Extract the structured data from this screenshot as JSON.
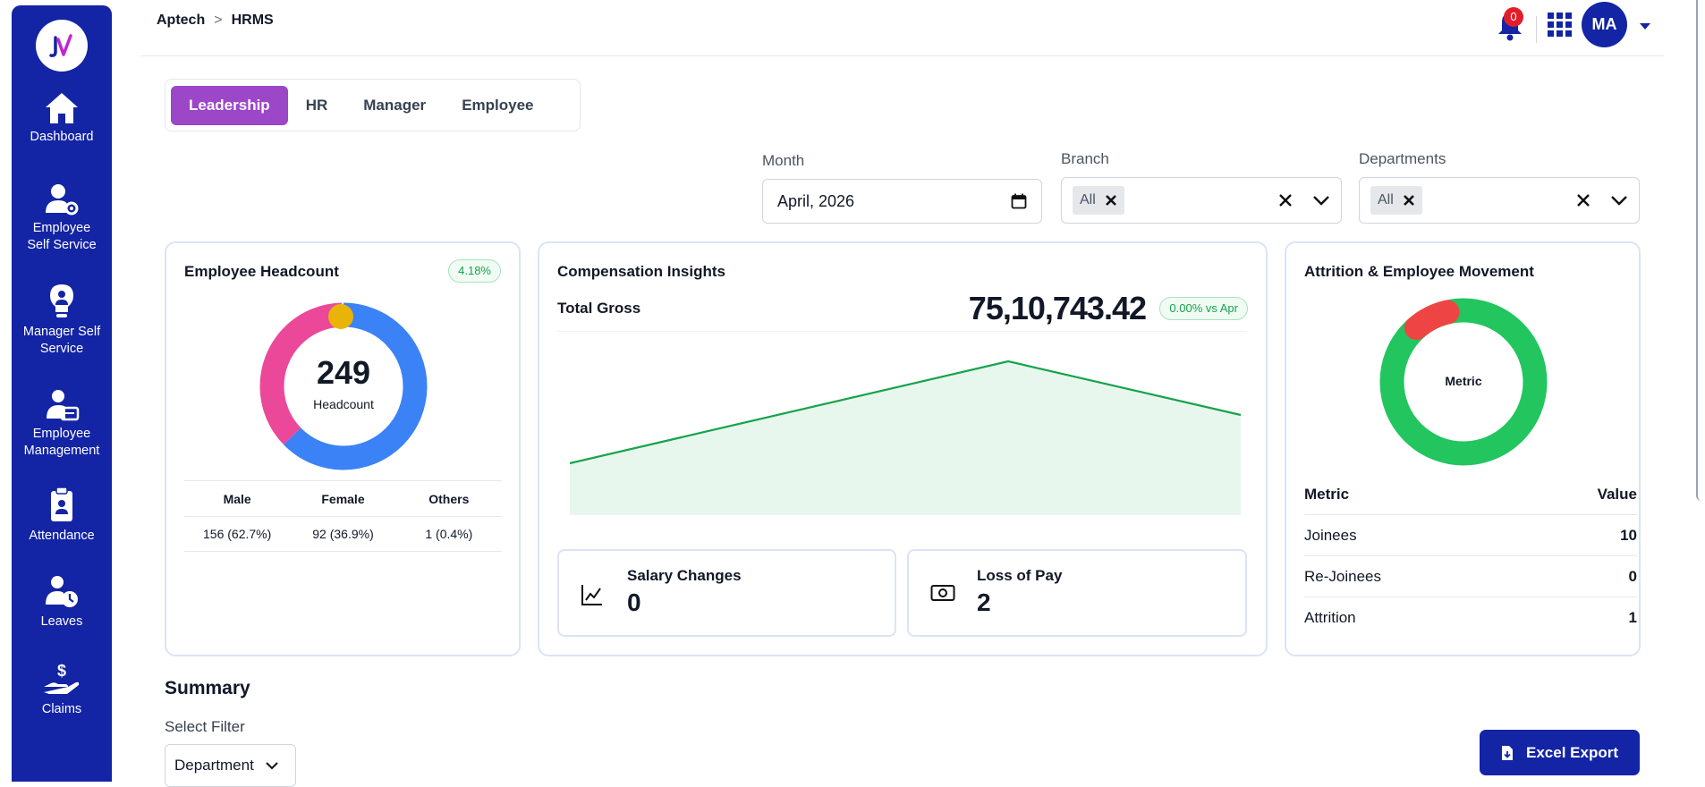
{
  "sidebar": {
    "items": [
      {
        "label_line1": "Dashboard",
        "label_line2": "",
        "icon": "home-icon"
      },
      {
        "label_line1": "Employee",
        "label_line2": "Self Service",
        "icon": "user-gear-icon"
      },
      {
        "label_line1": "Manager Self",
        "label_line2": "Service",
        "icon": "bulb-user-icon"
      },
      {
        "label_line1": "Employee",
        "label_line2": "Management",
        "icon": "user-card-icon"
      },
      {
        "label_line1": "Attendance",
        "label_line2": "",
        "icon": "clipboard-user-icon"
      },
      {
        "label_line1": "Leaves",
        "label_line2": "",
        "icon": "user-clock-icon"
      },
      {
        "label_line1": "Claims",
        "label_line2": "",
        "icon": "hand-dollar-icon"
      }
    ]
  },
  "header": {
    "breadcrumb": [
      "Aptech",
      ">",
      "HRMS"
    ],
    "notification_count": "0",
    "avatar_initials": "MA"
  },
  "tabs": [
    {
      "label": "Leadership",
      "active": true
    },
    {
      "label": "HR",
      "active": false
    },
    {
      "label": "Manager",
      "active": false
    },
    {
      "label": "Employee",
      "active": false
    }
  ],
  "filters": {
    "month_label": "Month",
    "month_value": "April, 2026",
    "branch_label": "Branch",
    "branch_chip": "All",
    "departments_label": "Departments",
    "departments_chip": "All"
  },
  "headcount": {
    "title": "Employee Headcount",
    "badge": "4.18%",
    "total": "249",
    "total_label": "Headcount",
    "columns": [
      "Male",
      "Female",
      "Others"
    ],
    "values": [
      "156 (62.7%)",
      "92 (36.9%)",
      "1 (0.4%)"
    ],
    "shares": [
      0.627,
      0.369,
      0.004
    ],
    "colors": [
      "#3b82f6",
      "#ec4899",
      "#eab308"
    ]
  },
  "compensation": {
    "title": "Compensation Insights",
    "gross_label": "Total Gross",
    "gross_value": "75,10,743.42",
    "badge": "0.00% vs Apr",
    "salary_changes_label": "Salary Changes",
    "salary_changes_value": "0",
    "loss_of_pay_label": "Loss of Pay",
    "loss_of_pay_value": "2",
    "line_color": "#16a34a",
    "fill_color": "#e8f7ee"
  },
  "attrition": {
    "title": "Attrition & Employee Movement",
    "center_label": "Metric",
    "head": [
      "Metric",
      "Value"
    ],
    "rows": [
      {
        "label": "Joinees",
        "value": "10"
      },
      {
        "label": "Re-Joinees",
        "value": "0"
      },
      {
        "label": "Attrition",
        "value": "1"
      }
    ],
    "colors": [
      "#22c55e",
      "#ef4444"
    ]
  },
  "summary": {
    "title": "Summary",
    "filter_label": "Select Filter",
    "filter_value": "Department",
    "export_label": "Excel Export"
  }
}
